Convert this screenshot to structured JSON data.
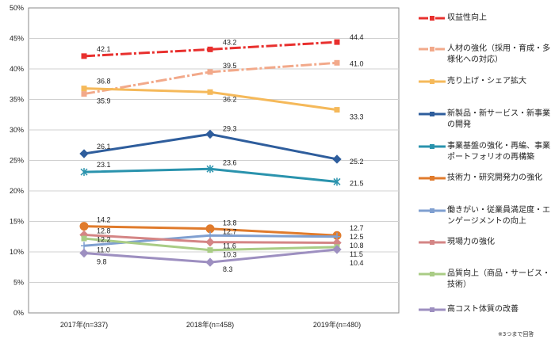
{
  "chart_data": {
    "type": "line",
    "categories": [
      "2017年(n=337)",
      "2018年(n=458)",
      "2019年(n=480)"
    ],
    "ylim": [
      0,
      50
    ],
    "yticks": [
      "0%",
      "5%",
      "10%",
      "15%",
      "20%",
      "25%",
      "30%",
      "35%",
      "40%",
      "45%",
      "50%"
    ],
    "grid": true,
    "legend": "right",
    "note": "※3つまで回答",
    "series": [
      {
        "name": "収益性向上",
        "values": [
          42.1,
          43.2,
          44.4
        ],
        "color": "#e8302e",
        "dash": true,
        "marker": "square"
      },
      {
        "name": "人材の強化（採用・育成・多様化への対応）",
        "values": [
          35.9,
          39.5,
          41.0
        ],
        "color": "#f2a98a",
        "dash": true,
        "marker": "square"
      },
      {
        "name": "売り上げ・シェア拡大",
        "values": [
          36.8,
          36.2,
          33.3
        ],
        "color": "#f5b95a",
        "marker": "square"
      },
      {
        "name": "新製品・新サービス・新事業の開発",
        "values": [
          26.1,
          29.3,
          25.2
        ],
        "color": "#2e5d9c",
        "marker": "diamond"
      },
      {
        "name": "事業基盤の強化・再編、事業ポートフォリオの再構築",
        "values": [
          23.1,
          23.6,
          21.5
        ],
        "color": "#2a93ad",
        "marker": "x"
      },
      {
        "name": "技術力・研究開発力の強化",
        "values": [
          14.2,
          13.8,
          12.7
        ],
        "color": "#e07b2c",
        "marker": "circle"
      },
      {
        "name": "働きがい・従業員満足度・エンゲージメントの向上",
        "values": [
          11.0,
          12.7,
          12.5
        ],
        "color": "#7f9fd0",
        "marker": "plus"
      },
      {
        "name": "現場力の強化",
        "values": [
          12.8,
          11.6,
          11.5
        ],
        "color": "#d48585",
        "marker": "diamond"
      },
      {
        "name": "品質向上（商品・サービス・技術）",
        "values": [
          12.2,
          10.3,
          10.8
        ],
        "color": "#a9cc85",
        "marker": "square"
      },
      {
        "name": "高コスト体質の改善",
        "values": [
          9.8,
          8.3,
          10.4
        ],
        "color": "#9d8fc0",
        "marker": "diamond"
      }
    ]
  }
}
